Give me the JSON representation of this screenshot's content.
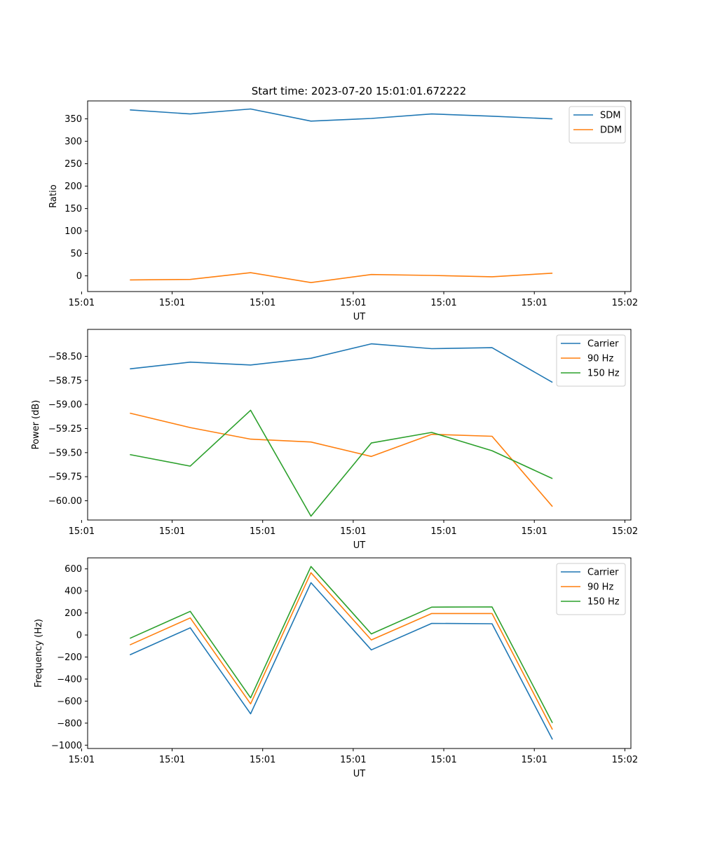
{
  "figure": {
    "title": "Start time: 2023-07-20 15:01:01.672222"
  },
  "colors": {
    "blue": "#1f77b4",
    "orange": "#ff7f0e",
    "green": "#2ca02c",
    "axes": "#000000",
    "legend_border": "#cccccc"
  },
  "chart_data": [
    {
      "type": "line",
      "title": "Start time: 2023-07-20 15:01:01.672222",
      "xlabel": "UT",
      "ylabel": "Ratio",
      "x": [
        1,
        2,
        3,
        4,
        5,
        6,
        7,
        8
      ],
      "xlim": [
        0.3,
        9.3
      ],
      "x_ticks": [
        0.2,
        1.7,
        3.2,
        4.7,
        6.2,
        7.7,
        9.2
      ],
      "x_tick_labels": [
        "15:01",
        "15:01",
        "15:01",
        "15:01",
        "15:01",
        "15:01",
        "15:02"
      ],
      "ylim": [
        -35,
        390
      ],
      "y_ticks": [
        0,
        50,
        100,
        150,
        200,
        250,
        300,
        350
      ],
      "y_tick_labels": [
        "0",
        "50",
        "100",
        "150",
        "200",
        "250",
        "300",
        "350"
      ],
      "grid": false,
      "legend_position": "top-right",
      "series": [
        {
          "name": "SDM",
          "color": "#1f77b4",
          "values": [
            370,
            361,
            372,
            345,
            351,
            361,
            356,
            350
          ]
        },
        {
          "name": "DDM",
          "color": "#ff7f0e",
          "values": [
            -9,
            -8,
            7,
            -15,
            3,
            1,
            -2,
            6
          ]
        }
      ]
    },
    {
      "type": "line",
      "title": "",
      "xlabel": "UT",
      "ylabel": "Power (dB)",
      "x": [
        1,
        2,
        3,
        4,
        5,
        6,
        7,
        8
      ],
      "xlim": [
        0.3,
        9.3
      ],
      "x_ticks": [
        0.2,
        1.7,
        3.2,
        4.7,
        6.2,
        7.7,
        9.2
      ],
      "x_tick_labels": [
        "15:01",
        "15:01",
        "15:01",
        "15:01",
        "15:01",
        "15:01",
        "15:02"
      ],
      "ylim": [
        -60.2,
        -58.22
      ],
      "y_ticks": [
        -58.5,
        -58.75,
        -59.0,
        -59.25,
        -59.5,
        -59.75,
        -60.0
      ],
      "y_tick_labels": [
        "−58.50",
        "−58.75",
        "−59.00",
        "−59.25",
        "−59.50",
        "−59.75",
        "−60.00"
      ],
      "grid": false,
      "legend_position": "top-right",
      "series": [
        {
          "name": "Carrier",
          "color": "#1f77b4",
          "values": [
            -58.63,
            -58.56,
            -58.59,
            -58.52,
            -58.37,
            -58.42,
            -58.41,
            -58.77
          ]
        },
        {
          "name": "90 Hz",
          "color": "#ff7f0e",
          "values": [
            -59.09,
            -59.24,
            -59.36,
            -59.39,
            -59.54,
            -59.31,
            -59.33,
            -60.06
          ]
        },
        {
          "name": "150 Hz",
          "color": "#2ca02c",
          "values": [
            -59.52,
            -59.64,
            -59.06,
            -60.16,
            -59.4,
            -59.29,
            -59.48,
            -59.77
          ]
        }
      ]
    },
    {
      "type": "line",
      "title": "",
      "xlabel": "UT",
      "ylabel": "Frequency (Hz)",
      "x": [
        1,
        2,
        3,
        4,
        5,
        6,
        7,
        8
      ],
      "xlim": [
        0.3,
        9.3
      ],
      "x_ticks": [
        0.2,
        1.7,
        3.2,
        4.7,
        6.2,
        7.7,
        9.2
      ],
      "x_tick_labels": [
        "15:01",
        "15:01",
        "15:01",
        "15:01",
        "15:01",
        "15:01",
        "15:02"
      ],
      "ylim": [
        -1030,
        700
      ],
      "y_ticks": [
        600,
        400,
        200,
        0,
        -200,
        -400,
        -600,
        -800,
        -1000
      ],
      "y_tick_labels": [
        "600",
        "400",
        "200",
        "0",
        "−200",
        "−400",
        "−600",
        "−800",
        "−1000"
      ],
      "grid": false,
      "legend_position": "top-right",
      "series": [
        {
          "name": "Carrier",
          "color": "#1f77b4",
          "values": [
            -180,
            65,
            -715,
            475,
            -135,
            105,
            102,
            -948
          ]
        },
        {
          "name": "90 Hz",
          "color": "#ff7f0e",
          "values": [
            -90,
            155,
            -625,
            565,
            -45,
            195,
            195,
            -858
          ]
        },
        {
          "name": "150 Hz",
          "color": "#2ca02c",
          "values": [
            -30,
            215,
            -570,
            622,
            10,
            253,
            255,
            -798
          ]
        }
      ]
    }
  ]
}
